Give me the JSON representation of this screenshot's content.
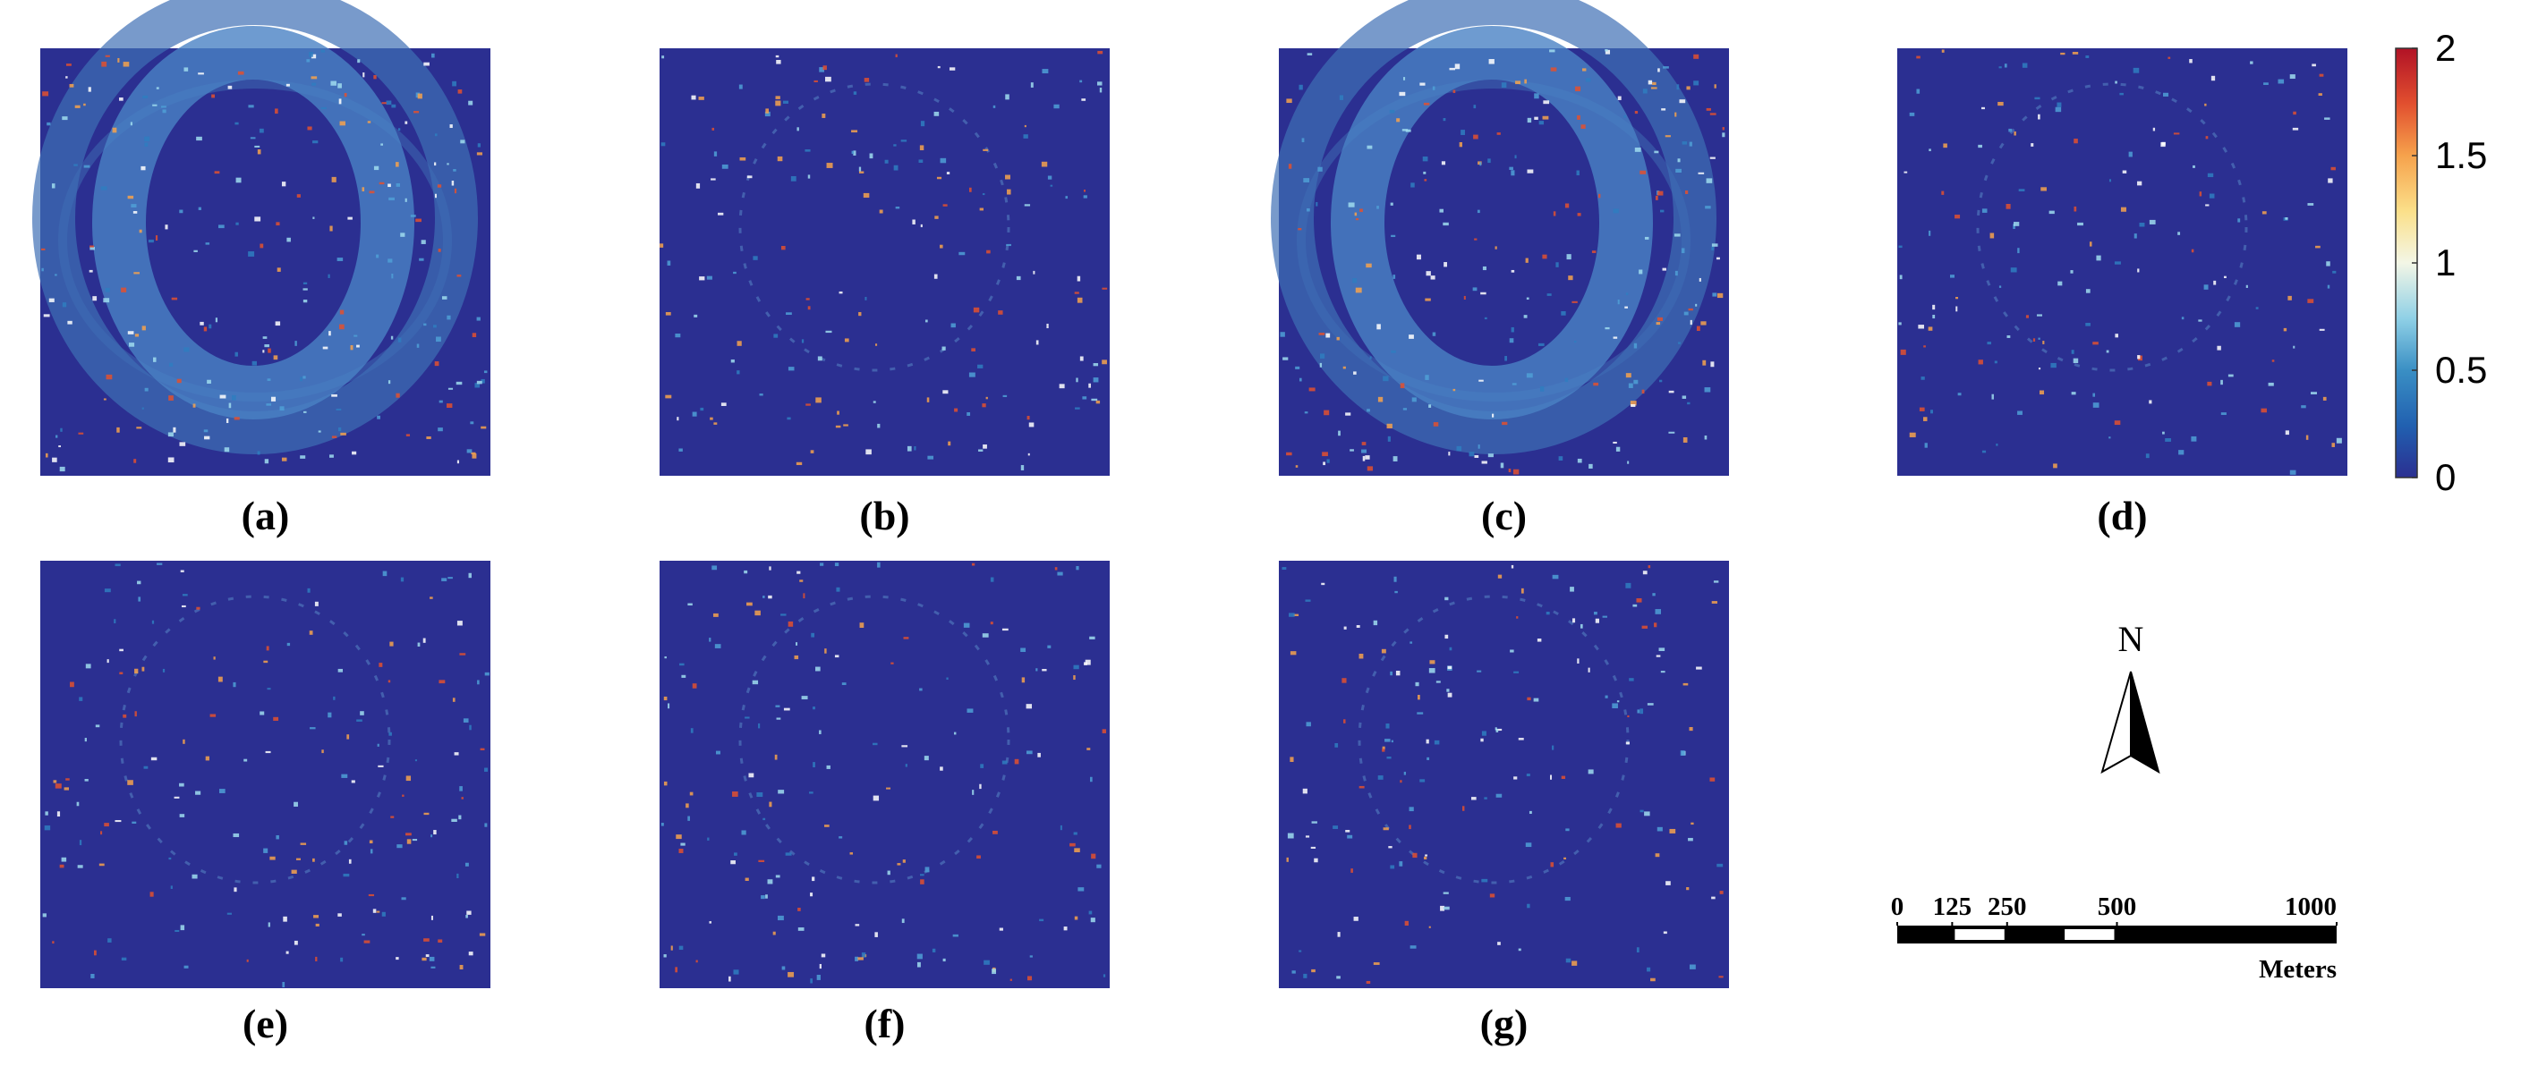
{
  "panels": [
    {
      "label": "(a)"
    },
    {
      "label": "(b)"
    },
    {
      "label": "(c)"
    },
    {
      "label": "(d)"
    },
    {
      "label": "(e)"
    },
    {
      "label": "(f)"
    },
    {
      "label": "(g)"
    }
  ],
  "colorbar": {
    "lim": [
      0,
      2
    ],
    "ticks": [
      0,
      0.5,
      1,
      1.5,
      2
    ]
  },
  "north_arrow": {
    "label": "N"
  },
  "scale_bar": {
    "ticks": [
      0,
      125,
      250,
      500,
      1000
    ],
    "unit": "Meters"
  }
}
